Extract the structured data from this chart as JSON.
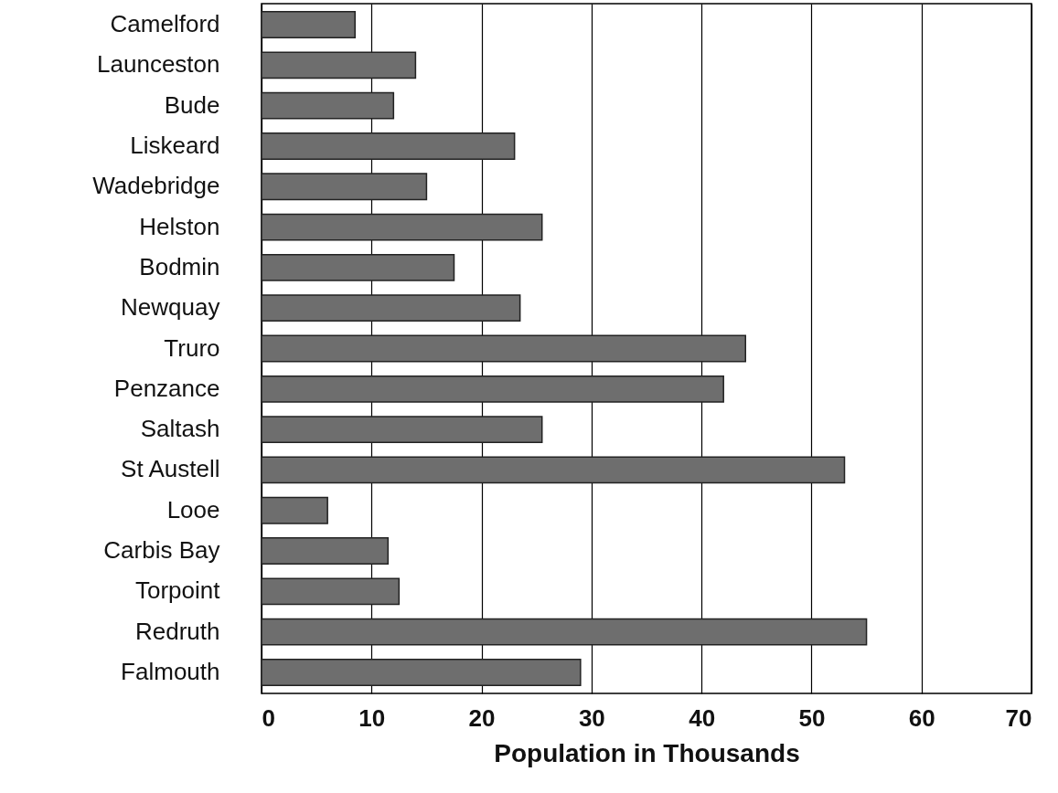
{
  "chart_data": {
    "type": "bar",
    "orientation": "horizontal",
    "xlabel": "Population in Thousands",
    "categories": [
      "Camelford",
      "Launceston",
      "Bude",
      "Liskeard",
      "Wadebridge",
      "Helston",
      "Bodmin",
      "Newquay",
      "Truro",
      "Penzance",
      "Saltash",
      "St Austell",
      "Looe",
      "Carbis Bay",
      "Torpoint",
      "Redruth",
      "Falmouth"
    ],
    "values": [
      8.5,
      14,
      12,
      23,
      15,
      25.5,
      17.5,
      23.5,
      44,
      42,
      25.5,
      53,
      6,
      11.5,
      12.5,
      55,
      29
    ],
    "color": "#6e6e6e",
    "xlim": [
      0,
      70
    ],
    "xticks": [
      0,
      10,
      20,
      30,
      40,
      50,
      60,
      70
    ],
    "grid": "x"
  }
}
